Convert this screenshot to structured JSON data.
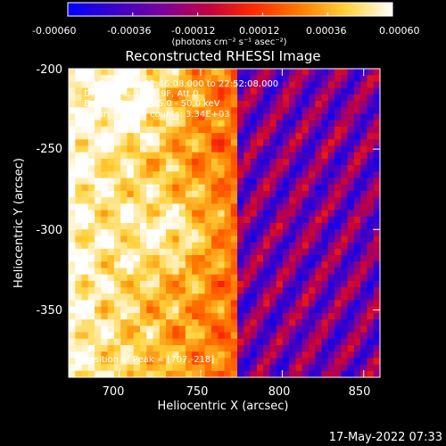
{
  "footer_timestamp": "17-May-2022 07:33",
  "colorbar": {
    "tick_labels": [
      "-0.00060",
      "-0.00036",
      "-0.00012",
      "0.00012",
      "0.00036",
      "0.00060"
    ],
    "unit_label": "(photons cm⁻² s⁻¹ asec⁻²)",
    "range": [
      -0.0006,
      0.0006
    ],
    "colors": [
      "#0000ff",
      "#3a00c8",
      "#7a00a0",
      "#c00040",
      "#ff2a00",
      "#ff7a00",
      "#ffd23a",
      "#ffffff"
    ]
  },
  "annotation": {
    "time_line": "17-Sep-2014 22:46:08.000 to 22:52:08.000",
    "detectors_line": "Detectors: 3F 6F 9F, Att 0",
    "energy_line": "Energy Range: 25.0 - 50.0 keV",
    "clean_line": "Clean      Total counts: 3.34E+03",
    "peak_line": "Position of Peak = [707,-218]"
  },
  "chart_data": {
    "type": "heatmap",
    "title": "Reconstructed RHESSI Image",
    "xlabel": "Heliocentric X (arcsec)",
    "ylabel": "Heliocentric Y (arcsec)",
    "xlim": [
      669,
      860
    ],
    "ylim": [
      -392,
      -200
    ],
    "x_ticks": [
      "700",
      "750",
      "800",
      "850"
    ],
    "y_ticks": [
      "-200",
      "-250",
      "-300",
      "-350"
    ],
    "x_tick_values": [
      700,
      750,
      800,
      850
    ],
    "y_tick_values": [
      -200,
      -250,
      -300,
      -350
    ],
    "peak_position": [
      707,
      -218
    ],
    "value_range": [
      -0.0006,
      0.0006
    ]
  }
}
